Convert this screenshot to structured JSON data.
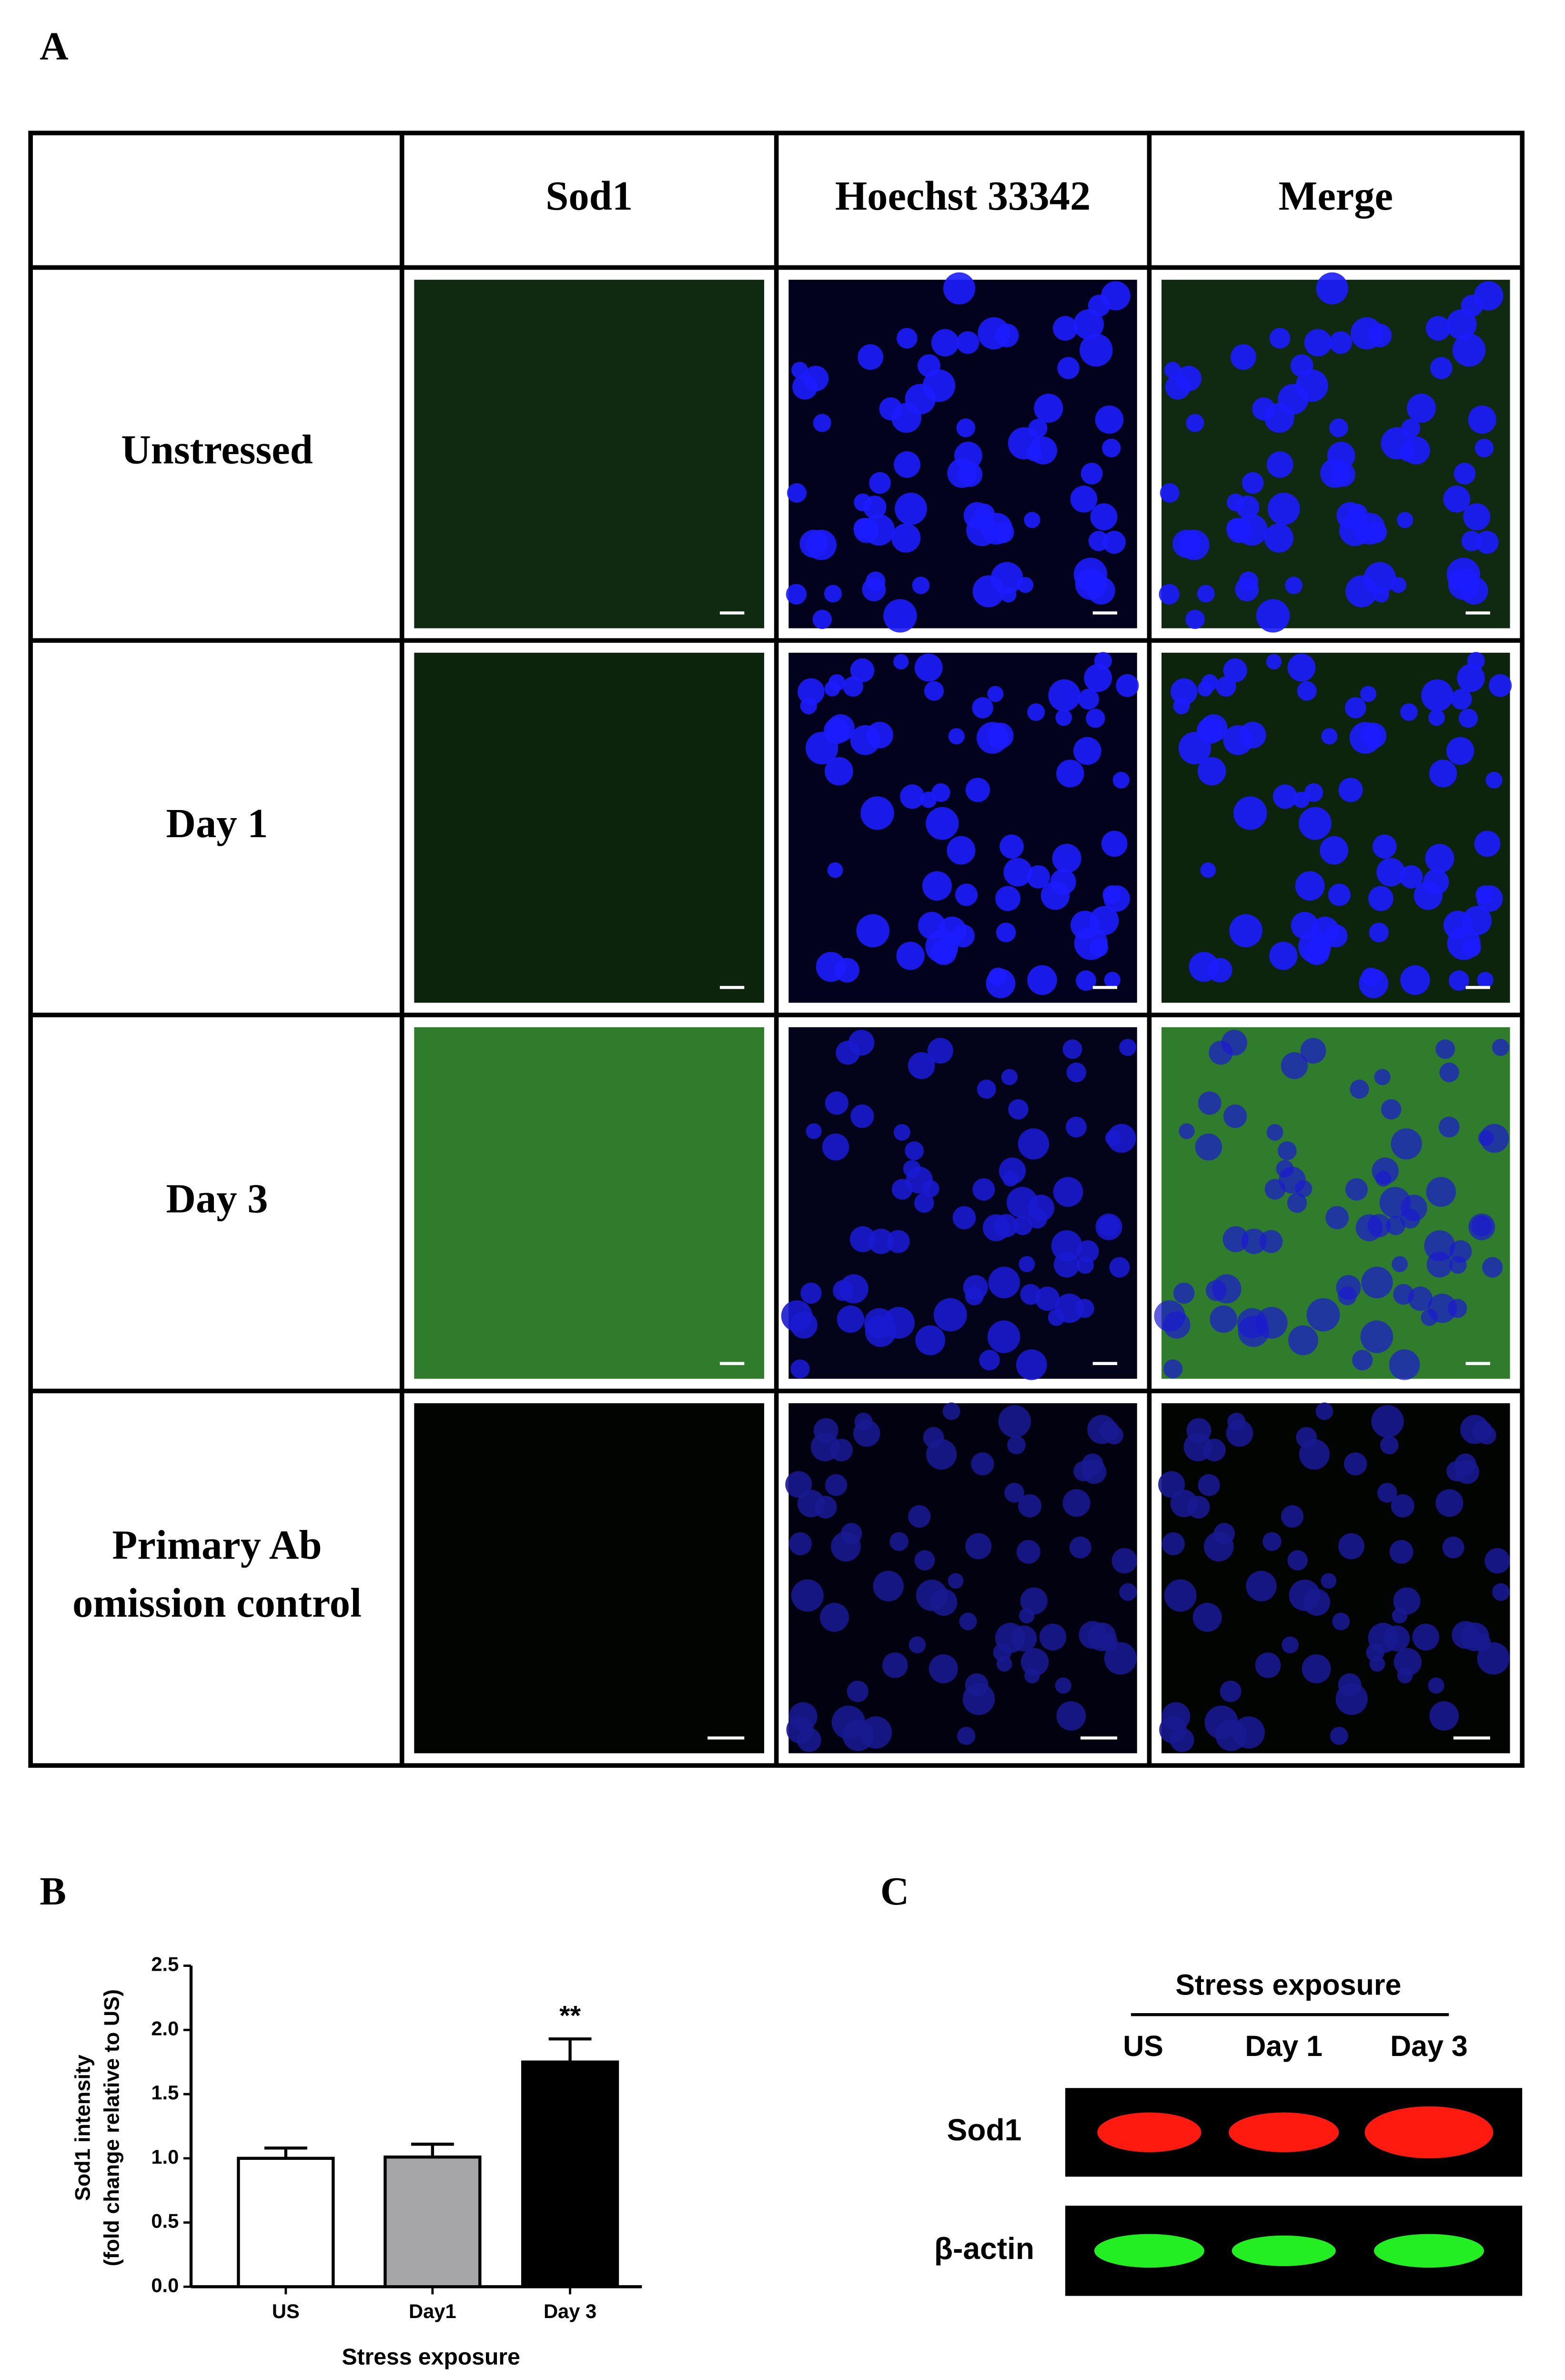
{
  "panel_a": {
    "label": "A",
    "columns": [
      "Sod1",
      "Hoechst 33342",
      "Merge"
    ],
    "rows": [
      [
        "Unstressed"
      ],
      [
        "Day 1"
      ],
      [
        "Day 3"
      ],
      [
        "Primary Ab",
        "omission control"
      ]
    ]
  },
  "chart_data": {
    "type": "bar",
    "label": "B",
    "ylabel": [
      "Sod1 intensity",
      "(fold change relative to US)"
    ],
    "xlabel": "Stress exposure",
    "categories": [
      "US",
      "Day1",
      "Day 3"
    ],
    "values": [
      1.0,
      1.01,
      1.75
    ],
    "errors": [
      0.08,
      0.1,
      0.18
    ],
    "colors": [
      "#ffffff",
      "#a6a6a8",
      "#000000"
    ],
    "significance_labels": [
      null,
      null,
      "**"
    ],
    "ylim": [
      0,
      2.5
    ],
    "yticks": [
      {
        "value": 0,
        "label": "0.0"
      },
      0.5,
      {
        "value": 1,
        "label": "1.0"
      },
      1.5,
      {
        "value": 2,
        "label": "2.0"
      },
      2.5
    ]
  },
  "panel_c": {
    "label": "C",
    "header": "Stress exposure",
    "lanes": [
      "US",
      "Day 1",
      "Day 3"
    ],
    "bands": [
      "Sod1",
      "β-actin"
    ]
  }
}
